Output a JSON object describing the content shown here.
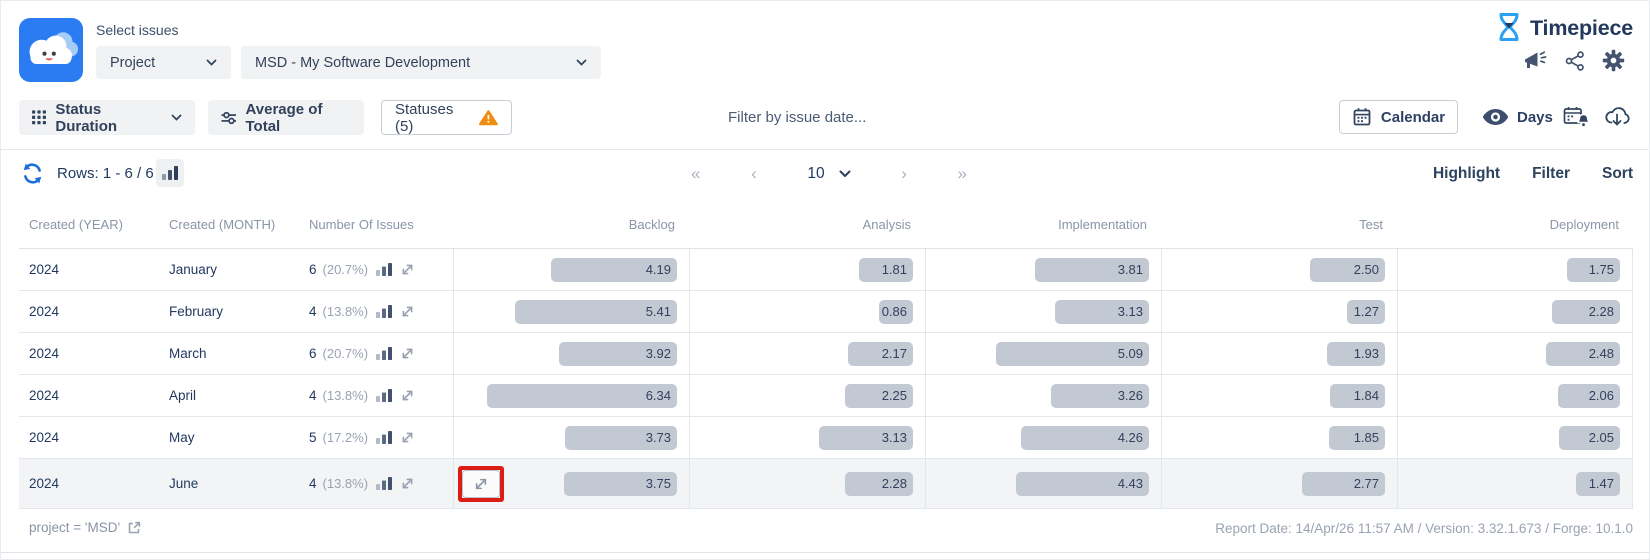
{
  "header": {
    "select_issues_label": "Select issues",
    "scope_dropdown_value": "Project",
    "project_dropdown_value": "MSD - My Software Development",
    "brand_name": "Timepiece"
  },
  "toolbar": {
    "view_button_label": "Status Duration",
    "average_button_label": "Average of Total",
    "statuses_button_label": "Statuses (5)",
    "filter_date_placeholder": "Filter by issue date...",
    "calendar_button_label": "Calendar",
    "days_toggle_label": "Days"
  },
  "controls": {
    "rows_label": "Rows: 1 - 6 / 6",
    "pagination": {
      "first": "«",
      "prev": "‹",
      "page_size": "10",
      "next": "›",
      "last": "»"
    },
    "actions": [
      "Highlight",
      "Filter",
      "Sort"
    ]
  },
  "table": {
    "columns": [
      "Created (YEAR)",
      "Created (MONTH)",
      "Number Of Issues",
      "Backlog",
      "Analysis",
      "Implementation",
      "Test",
      "Deployment"
    ],
    "rows": [
      {
        "year": "2024",
        "month": "January",
        "issues": "6",
        "issues_pct": "(20.7%)",
        "values": [
          "4.19",
          "1.81",
          "3.81",
          "2.50",
          "1.75"
        ]
      },
      {
        "year": "2024",
        "month": "February",
        "issues": "4",
        "issues_pct": "(13.8%)",
        "values": [
          "5.41",
          "0.86",
          "3.13",
          "1.27",
          "2.28"
        ]
      },
      {
        "year": "2024",
        "month": "March",
        "issues": "6",
        "issues_pct": "(20.7%)",
        "values": [
          "3.92",
          "2.17",
          "5.09",
          "1.93",
          "2.48"
        ]
      },
      {
        "year": "2024",
        "month": "April",
        "issues": "4",
        "issues_pct": "(13.8%)",
        "values": [
          "6.34",
          "2.25",
          "3.26",
          "1.84",
          "2.06"
        ]
      },
      {
        "year": "2024",
        "month": "May",
        "issues": "5",
        "issues_pct": "(17.2%)",
        "values": [
          "3.73",
          "3.13",
          "4.26",
          "1.85",
          "2.05"
        ]
      },
      {
        "year": "2024",
        "month": "June",
        "issues": "4",
        "issues_pct": "(13.8%)",
        "values": [
          "3.75",
          "2.28",
          "4.43",
          "2.77",
          "1.47"
        ],
        "highlighted_expand": true,
        "hovered": true
      }
    ]
  },
  "footer": {
    "query_text": "project = 'MSD'",
    "report_info": "Report Date: 14/Apr/26 11:57 AM / Version: 3.32.1.673 / Forge: 10.1.0"
  },
  "colors": {
    "accent_blue": "#2b7cf2",
    "brand_navy": "#24395e",
    "warning_orange": "#ef8d13",
    "highlight_red": "#dd1d15",
    "bar_gray": "#c3c9d3"
  }
}
